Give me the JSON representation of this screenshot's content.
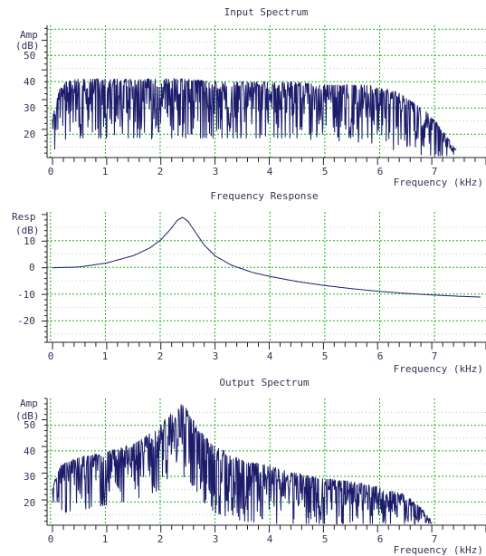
{
  "colors": {
    "trace": "#1c1c6b",
    "grid": "#19b31f",
    "axis": "#222222",
    "text": "#333355",
    "background": "#ffffff"
  },
  "chart_data": [
    {
      "type": "line",
      "title": "Input Spectrum",
      "ylabel_line1": "Amp",
      "ylabel_line2": "(dB)",
      "xlabel": "Frequency (kHz)",
      "xlim": [
        -0.1,
        8.0
      ],
      "ylim": [
        10.5,
        55
      ],
      "y_ticks": [
        20,
        30,
        40,
        50
      ],
      "x_ticks": [
        0,
        1,
        2,
        3,
        4,
        5,
        6,
        7
      ],
      "grid": true,
      "series": [
        {
          "x": [
            0.0,
            0.15,
            0.3,
            0.5,
            0.75,
            1.0,
            1.5,
            2.0,
            2.5,
            3.0,
            3.5,
            4.0,
            4.5,
            5.0,
            5.5,
            5.8,
            6.0,
            6.3,
            6.6,
            6.9,
            7.1,
            7.3,
            7.45
          ],
          "y_upper": [
            24,
            35,
            37,
            37,
            37,
            37,
            37,
            37,
            37,
            36,
            36,
            36,
            36,
            35,
            35,
            35,
            34,
            33,
            30,
            26,
            22,
            17,
            13
          ],
          "y_lower": [
            11,
            16,
            17,
            17,
            17,
            17,
            17,
            17,
            17,
            17,
            17,
            17,
            17,
            16,
            16,
            15,
            14,
            13,
            12,
            11,
            11,
            11,
            11
          ]
        }
      ]
    },
    {
      "type": "line",
      "title": "Frequency Response",
      "ylabel_line1": "Resp",
      "ylabel_line2": "(dB)",
      "xlabel": "Frequency (kHz)",
      "xlim": [
        -0.1,
        8.0
      ],
      "ylim": [
        -28,
        21
      ],
      "y_ticks": [
        -20,
        -10,
        0,
        10
      ],
      "x_ticks": [
        0,
        1,
        2,
        3,
        4,
        5,
        6,
        7
      ],
      "grid": true,
      "series": [
        {
          "x": [
            0.0,
            0.5,
            1.0,
            1.5,
            1.8,
            2.0,
            2.2,
            2.3,
            2.4,
            2.5,
            2.6,
            2.8,
            3.0,
            3.3,
            3.7,
            4.0,
            4.5,
            5.0,
            5.5,
            6.0,
            6.5,
            7.0,
            7.5,
            7.9
          ],
          "y": [
            0.0,
            0.3,
            1.8,
            4.6,
            7.5,
            10.5,
            15.0,
            17.8,
            19.0,
            17.5,
            14.5,
            8.5,
            4.5,
            1.0,
            -1.8,
            -3.2,
            -5.1,
            -6.6,
            -7.8,
            -8.8,
            -9.6,
            -10.2,
            -10.7,
            -11.0
          ]
        }
      ]
    },
    {
      "type": "line",
      "title": "Output Spectrum",
      "ylabel_line1": "Amp",
      "ylabel_line2": "(dB)",
      "xlabel": "Frequency (kHz)",
      "xlim": [
        -0.1,
        8.0
      ],
      "ylim": [
        10.5,
        58
      ],
      "y_ticks": [
        20,
        30,
        40,
        50
      ],
      "x_ticks": [
        0,
        1,
        2,
        3,
        4,
        5,
        6,
        7
      ],
      "grid": true,
      "series": [
        {
          "x": [
            0.0,
            0.15,
            0.5,
            1.0,
            1.5,
            1.8,
            2.0,
            2.2,
            2.35,
            2.45,
            2.6,
            2.8,
            3.0,
            3.5,
            4.0,
            4.5,
            5.0,
            5.5,
            6.0,
            6.5,
            6.8,
            7.0
          ],
          "y_upper": [
            25,
            33,
            36,
            38,
            41,
            45,
            48,
            53,
            56,
            55,
            50,
            44,
            40,
            35,
            33,
            30,
            28,
            27,
            25,
            22,
            17,
            12
          ],
          "y_lower": [
            11,
            15,
            16,
            18,
            20,
            22,
            24,
            28,
            30,
            28,
            25,
            19,
            15,
            12,
            11,
            11,
            11,
            11,
            11,
            11,
            11,
            11
          ]
        }
      ]
    }
  ]
}
